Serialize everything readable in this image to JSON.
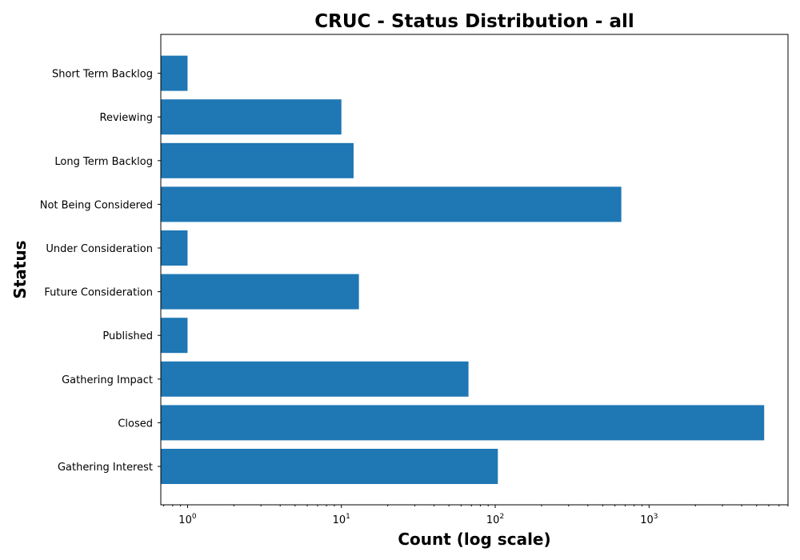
{
  "chart_data": {
    "type": "bar",
    "orientation": "horizontal",
    "title": "CRUC - Status Distribution - all",
    "xlabel": "Count (log scale)",
    "ylabel": "Status",
    "x_scale": "log",
    "xlim": [
      0.67,
      8000
    ],
    "x_ticks": [
      {
        "value": 1,
        "base": "10",
        "exp": "0"
      },
      {
        "value": 10,
        "base": "10",
        "exp": "1"
      },
      {
        "value": 100,
        "base": "10",
        "exp": "2"
      },
      {
        "value": 1000,
        "base": "10",
        "exp": "3"
      }
    ],
    "categories": [
      "Gathering Interest",
      "Closed",
      "Gathering Impact",
      "Published",
      "Future Consideration",
      "Under Consideration",
      "Not Being Considered",
      "Long Term Backlog",
      "Reviewing",
      "Short Term Backlog"
    ],
    "values": [
      104,
      5600,
      67,
      1,
      13,
      1,
      660,
      12,
      10,
      1
    ],
    "bar_color": "#1f77b4",
    "grid": false,
    "legend": "none"
  }
}
